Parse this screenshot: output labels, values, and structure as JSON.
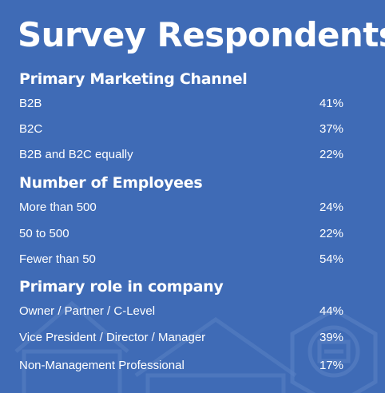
{
  "title": "Survey Respondents",
  "colors": {
    "background": "#3f6bb6",
    "text": "#ffffff",
    "decoration": "#5a82c4"
  },
  "chart_data": {
    "type": "table",
    "title": "Survey Respondents",
    "sections": [
      {
        "heading": "Primary Marketing Channel",
        "rows": [
          {
            "label": "B2B",
            "value": "41%"
          },
          {
            "label": "B2C",
            "value": "37%"
          },
          {
            "label": "B2B and B2C equally",
            "value": "22%"
          }
        ]
      },
      {
        "heading": "Number of Employees",
        "rows": [
          {
            "label": "More than 500",
            "value": "24%"
          },
          {
            "label": "50 to 500",
            "value": "22%"
          },
          {
            "label": "Fewer than 50",
            "value": "54%"
          }
        ]
      },
      {
        "heading": "Primary role in company",
        "rows": [
          {
            "label": "Owner / Partner / C-Level",
            "value": "44%"
          },
          {
            "label": "Vice President / Director / Manager",
            "value": "39%"
          },
          {
            "label": "Non-Management Professional",
            "value": "17%"
          }
        ]
      }
    ]
  },
  "decorations": [
    "house-outline-icon",
    "house-outline-icon",
    "hexagon-building-icon"
  ]
}
